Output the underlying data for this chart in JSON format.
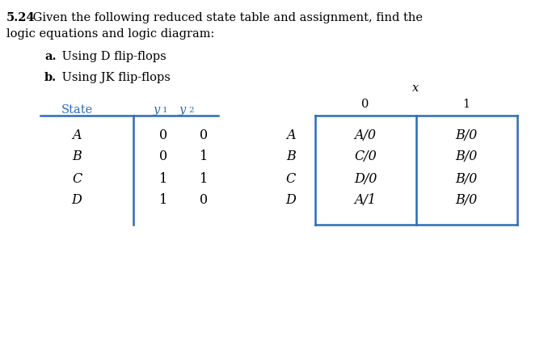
{
  "title_bold": "5.24",
  "title_rest": " Given the following reduced state table and assignment, find the",
  "title_line2": "logic equations and logic diagram:",
  "sub_a_bold": "a.",
  "sub_a_rest": " Using D flip-flops",
  "sub_b_bold": "b.",
  "sub_b_rest": " Using JK flip-flops",
  "table1_state_header": "State",
  "table1_y1_label": "y",
  "table1_y1_sub": "1",
  "table1_y2_label": "y",
  "table1_y2_sub": "2",
  "table1_rows": [
    [
      "A",
      "0",
      "0"
    ],
    [
      "B",
      "0",
      "1"
    ],
    [
      "C",
      "1",
      "1"
    ],
    [
      "D",
      "1",
      "0"
    ]
  ],
  "x_label": "x",
  "table2_col_headers": [
    "0",
    "1"
  ],
  "table2_row_labels": [
    "A",
    "B",
    "C",
    "D"
  ],
  "table2_data": [
    [
      "A/0",
      "B/0"
    ],
    [
      "C/0",
      "B/0"
    ],
    [
      "D/0",
      "B/0"
    ],
    [
      "A/1",
      "B/0"
    ]
  ],
  "blue_color": "#2B6CB8",
  "bg_color": "#ffffff",
  "text_color": "#000000",
  "fontsize": 10.5
}
